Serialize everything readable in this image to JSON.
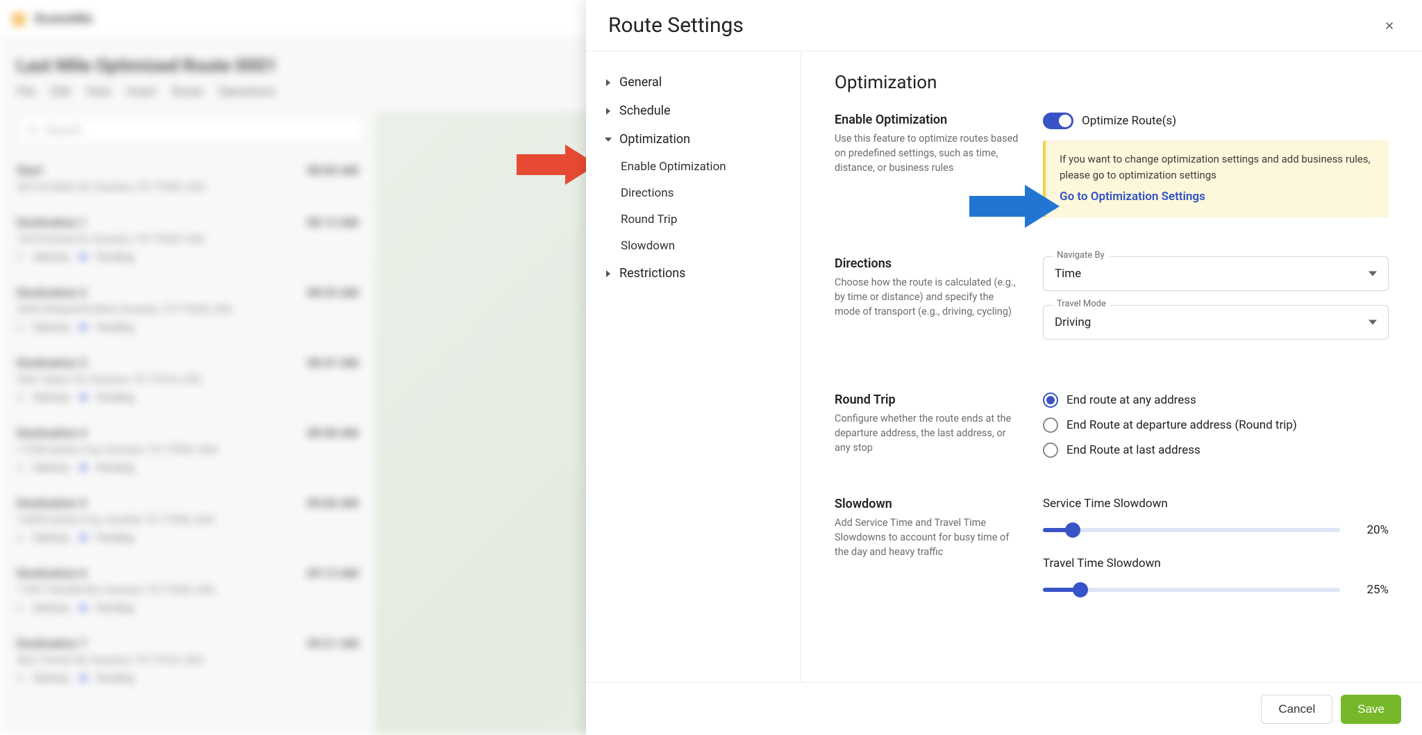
{
  "bg": {
    "logotext": "Route4Me",
    "title": "Last Mile Optimized Route 0001",
    "menu": [
      "File",
      "Edit",
      "View",
      "Insert",
      "Route",
      "Operations"
    ],
    "search_placeholder": "Search",
    "items": [
      {
        "name": "Start",
        "addr": "2813 N Main St, Houston, TX 77009, USA",
        "time": "08:00 AM"
      },
      {
        "name": "Destination 1",
        "addr": "105 Portwall St, Houston, TX 77029, USA",
        "time": "08:13 AM",
        "delivery": "Delivery",
        "status": "Pending"
      },
      {
        "name": "Destination 2",
        "addr": "4455 Kirkpatrick Blvd, Houston, TX 77028, USA",
        "time": "08:25 AM",
        "delivery": "Delivery",
        "status": "Pending"
      },
      {
        "name": "Destination 3",
        "addr": "5401 Spano St, Houston, TX 77016, USA",
        "time": "08:47 AM",
        "delivery": "Delivery",
        "status": "Pending"
      },
      {
        "name": "Destination 4",
        "addr": "11350 Eastex Fwy, Houston, TX 77093, USA",
        "time": "08:58 AM",
        "delivery": "Delivery",
        "status": "Pending"
      },
      {
        "name": "Destination 5",
        "addr": "14655 Eastex Fwy, Humble, TX 77396, USA",
        "time": "09:06 AM",
        "delivery": "Delivery",
        "status": "Pending"
      },
      {
        "name": "Destination 6",
        "addr": "11831 Randell Rd, Houston, TX 77049, USA",
        "time": "09:13 AM",
        "delivery": "Delivery",
        "status": "Pending"
      },
      {
        "name": "Destination 7",
        "addr": "4621 Porter Rd, Houston, TX 77076, USA",
        "time": "09:21 AM",
        "delivery": "Delivery",
        "status": "Pending"
      }
    ]
  },
  "modal": {
    "title": "Route Settings",
    "nav": {
      "general": "General",
      "schedule": "Schedule",
      "optimization": "Optimization",
      "restrictions": "Restrictions",
      "sub": {
        "enable": "Enable Optimization",
        "directions": "Directions",
        "round_trip": "Round Trip",
        "slowdown": "Slowdown"
      }
    },
    "pane_title": "Optimization",
    "enable": {
      "label": "Enable Optimization",
      "desc": "Use this feature to optimize routes based on predefined settings, such as time, distance, or business rules",
      "toggle_text": "Optimize Route(s)",
      "info_text": "If you want to change optimization settings and add business rules, please go to optimization settings",
      "info_link": "Go to Optimization Settings"
    },
    "directions": {
      "label": "Directions",
      "desc": "Choose how the route is calculated (e.g., by time or distance) and specify the mode of transport (e.g., driving, cycling)",
      "navigate_label": "Navigate By",
      "navigate_value": "Time",
      "travel_label": "Travel Mode",
      "travel_value": "Driving"
    },
    "round_trip": {
      "label": "Round Trip",
      "desc": "Configure whether the route ends at the departure address, the last address, or any stop",
      "opt1": "End route at any address",
      "opt2": "End Route at departure address (Round trip)",
      "opt3": "End Route at last address"
    },
    "slowdown": {
      "label": "Slowdown",
      "desc": "Add Service Time and Travel Time Slowdowns to account for busy time of the day and heavy traffic",
      "service_label": "Service Time Slowdown",
      "service_value": 20,
      "service_display": "20%",
      "travel_label": "Travel Time Slowdown",
      "travel_value": 25,
      "travel_display": "25%"
    },
    "footer": {
      "cancel": "Cancel",
      "save": "Save"
    }
  },
  "colors": {
    "primary_blue": "#3853c7",
    "info_bg": "#fdf7db",
    "info_border": "#f3d24a",
    "save_green": "#76b82a",
    "red_arrow": "#e74a33",
    "blue_arrow": "#2276d2"
  }
}
